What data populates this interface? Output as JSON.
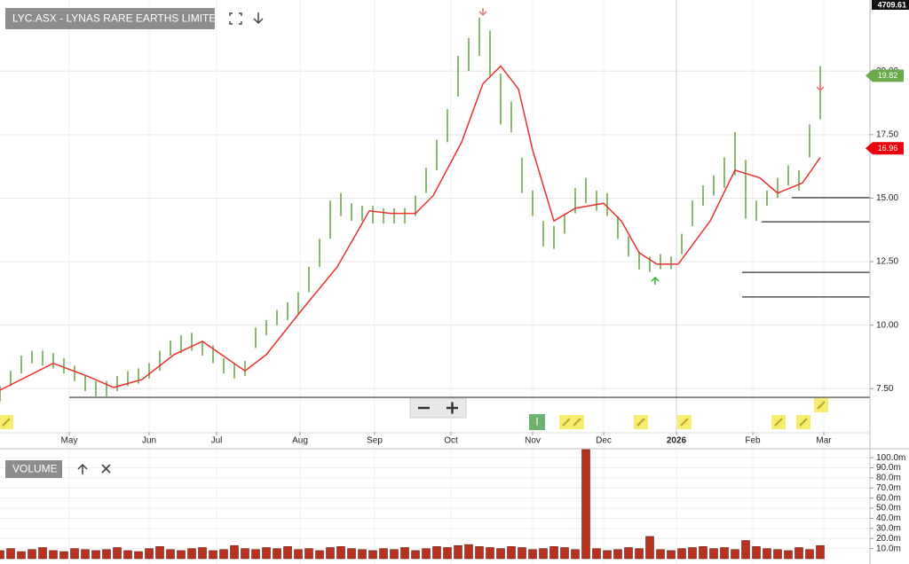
{
  "chart_data": [
    {
      "type": "range",
      "title": "LYC.ASX - LYNAS RARE EARTHS LIMITED",
      "color": "#6aaa4c",
      "x": [
        0,
        3,
        6,
        9,
        12,
        15,
        18,
        21,
        24,
        27,
        30,
        33,
        36,
        39,
        42,
        45,
        48,
        51,
        54,
        57,
        60,
        63,
        66,
        69,
        72,
        75,
        78,
        81,
        84,
        87,
        90,
        93,
        96,
        99,
        102,
        105,
        108,
        111,
        114,
        117,
        120,
        123,
        126,
        129,
        132,
        135,
        138,
        141,
        144,
        147,
        150,
        153,
        156,
        159,
        162,
        165,
        168,
        171,
        174,
        177,
        180,
        183,
        186,
        189,
        192,
        195,
        198,
        201,
        204,
        207,
        210,
        213,
        216,
        219,
        222,
        225,
        228,
        231
      ],
      "high": [
        7.6,
        8.2,
        8.8,
        9.0,
        9.0,
        8.9,
        8.7,
        8.4,
        8.0,
        7.8,
        7.8,
        8.0,
        8.2,
        8.3,
        8.5,
        9.0,
        9.4,
        9.6,
        9.7,
        9.4,
        9.2,
        8.7,
        8.5,
        8.6,
        9.9,
        10.2,
        10.6,
        10.9,
        11.3,
        12.3,
        13.4,
        14.9,
        15.2,
        14.8,
        14.7,
        14.7,
        14.6,
        14.6,
        14.6,
        15.1,
        16.2,
        17.3,
        18.5,
        20.6,
        21.3,
        22.1,
        21.6,
        19.9,
        18.8,
        16.6,
        15.3,
        14.1,
        13.9,
        14.4,
        15.4,
        15.8,
        15.3,
        15.2,
        14.3,
        13.5,
        12.9,
        12.7,
        12.8,
        12.7,
        13.6,
        14.9,
        15.5,
        15.9,
        16.6,
        17.6,
        16.5,
        14.9,
        15.3,
        15.8,
        16.3,
        16.1,
        17.9,
        20.2
      ],
      "low": [
        7.0,
        7.6,
        8.1,
        8.5,
        8.4,
        8.3,
        8.1,
        7.8,
        7.4,
        7.2,
        7.2,
        7.4,
        7.6,
        7.7,
        7.9,
        8.2,
        8.8,
        8.9,
        9.0,
        8.8,
        8.5,
        8.1,
        7.9,
        8.0,
        9.1,
        9.6,
        10.0,
        10.2,
        10.4,
        11.3,
        12.3,
        13.4,
        14.3,
        14.1,
        14.1,
        14.0,
        14.0,
        14.0,
        14.0,
        14.3,
        15.2,
        16.1,
        17.2,
        19.0,
        20.0,
        20.6,
        19.8,
        17.9,
        17.6,
        15.2,
        14.3,
        13.1,
        13.0,
        13.6,
        14.4,
        14.8,
        14.5,
        14.3,
        13.4,
        12.7,
        12.2,
        12.1,
        12.2,
        12.2,
        12.8,
        13.9,
        14.7,
        15.1,
        15.4,
        15.9,
        14.2,
        14.1,
        14.7,
        15.0,
        15.5,
        15.3,
        16.6,
        18.1
      ],
      "moving_average": {
        "color": "#e8312f",
        "x": [
          0,
          15,
          25,
          32,
          40,
          49,
          57,
          69,
          75,
          85,
          95,
          104,
          110,
          117,
          122,
          130,
          136,
          141,
          146,
          150,
          156,
          162,
          170,
          175,
          180,
          185,
          191,
          200,
          207,
          214,
          219,
          226,
          231
        ],
        "values": [
          7.44,
          8.5,
          7.97,
          7.55,
          7.86,
          8.84,
          9.36,
          8.2,
          8.84,
          10.6,
          12.3,
          14.5,
          14.4,
          14.4,
          15.1,
          17.2,
          19.5,
          20.2,
          19.3,
          16.9,
          14.1,
          14.6,
          14.8,
          14.1,
          12.85,
          12.4,
          12.4,
          14.1,
          16.1,
          15.8,
          15.2,
          15.6,
          16.6
        ]
      },
      "levels": [
        {
          "value": 7.16,
          "x0": 19.5,
          "x1": 245
        },
        {
          "value": 15.02,
          "x0": 223,
          "x1": 245
        },
        {
          "value": 14.07,
          "x0": 214.5,
          "x1": 245
        },
        {
          "value": 12.08,
          "x0": 209,
          "x1": 245
        },
        {
          "value": 11.11,
          "x0": 209,
          "x1": 245
        }
      ],
      "last_price": 19.82,
      "last_price_color": "#6aaa4c",
      "ma_price": 16.96,
      "ma_price_color": "#e8000b",
      "index_value": 4709.61,
      "event_label": "I",
      "xlim": [
        0,
        245
      ],
      "ylim": [
        5.8,
        22.8
      ],
      "xticks": [
        {
          "value": 19.5,
          "label": "May"
        },
        {
          "value": 42,
          "label": "Jun"
        },
        {
          "value": 61,
          "label": "Jul"
        },
        {
          "value": 84.5,
          "label": "Aug"
        },
        {
          "value": 105.5,
          "label": "Sep"
        },
        {
          "value": 127,
          "label": "Oct"
        },
        {
          "value": 150,
          "label": "Nov"
        },
        {
          "value": 170,
          "label": "Dec"
        },
        {
          "value": 190.5,
          "label": "2026"
        },
        {
          "value": 212,
          "label": "Feb"
        },
        {
          "value": 232,
          "label": "Mar"
        }
      ],
      "yticks": [
        {
          "value": 7.5,
          "label": "7.50"
        },
        {
          "value": 10,
          "label": "10.00"
        },
        {
          "value": 12.5,
          "label": "12.50"
        },
        {
          "value": 15,
          "label": "15.00"
        },
        {
          "value": 17.5,
          "label": "17.50"
        },
        {
          "value": 20,
          "label": "20.00"
        }
      ],
      "grid": true
    },
    {
      "type": "bar",
      "title": "VOLUME",
      "color": "#b8321f",
      "x": [
        0,
        3,
        6,
        9,
        12,
        15,
        18,
        21,
        24,
        27,
        30,
        33,
        36,
        39,
        42,
        45,
        48,
        51,
        54,
        57,
        60,
        63,
        66,
        69,
        72,
        75,
        78,
        81,
        84,
        87,
        90,
        93,
        96,
        99,
        102,
        105,
        108,
        111,
        114,
        117,
        120,
        123,
        126,
        129,
        132,
        135,
        138,
        141,
        144,
        147,
        150,
        153,
        156,
        159,
        162,
        165,
        168,
        171,
        174,
        177,
        180,
        183,
        186,
        189,
        192,
        195,
        198,
        201,
        204,
        207,
        210,
        213,
        216,
        219,
        222,
        225,
        228,
        231
      ],
      "values": [
        8,
        10,
        7,
        9,
        11,
        8,
        7,
        10,
        9,
        8,
        9,
        11,
        8,
        7,
        10,
        12,
        9,
        8,
        10,
        11,
        8,
        9,
        13,
        10,
        9,
        11,
        10,
        12,
        9,
        10,
        8,
        11,
        12,
        10,
        9,
        8,
        10,
        9,
        11,
        8,
        10,
        12,
        11,
        13,
        14,
        12,
        11,
        10,
        12,
        11,
        9,
        10,
        12,
        11,
        9,
        108,
        10,
        8,
        9,
        11,
        10,
        22,
        9,
        8,
        10,
        11,
        12,
        10,
        11,
        9,
        18,
        12,
        10,
        9,
        8,
        11,
        9,
        13
      ],
      "xlim": [
        0,
        245
      ],
      "ylim": [
        0,
        108
      ],
      "yticks": [
        {
          "value": 10,
          "label": "10.0m"
        },
        {
          "value": 20,
          "label": "20.0m"
        },
        {
          "value": 30,
          "label": "30.0m"
        },
        {
          "value": 40,
          "label": "40.0m"
        },
        {
          "value": 50,
          "label": "50.0m"
        },
        {
          "value": 60,
          "label": "60.0m"
        },
        {
          "value": 70,
          "label": "70.0m"
        },
        {
          "value": 80,
          "label": "80.0m"
        },
        {
          "value": 90,
          "label": "90.0m"
        },
        {
          "value": 100,
          "label": "100.0m"
        }
      ],
      "grid": true
    }
  ]
}
